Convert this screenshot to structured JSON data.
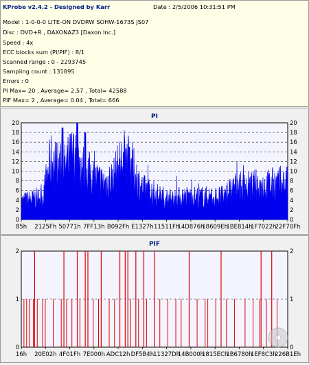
{
  "info": {
    "title": "KProbe v2.4.2 - Designed by Karr",
    "date": "Date : 2/5/2006 10:31:51 PM",
    "lines": [
      "Model : 1-0-0-0 LITE-ON DVDRW SOHW-1673S JS07",
      "Disc : DVD+R , DAXONAZ3 [Daxon Inc.]",
      "Speed : 4x",
      "ECC blocks sum (PI/PIF) : 8/1",
      "Scanned range : 0 - 2293745",
      "Sampling count : 131895",
      "Errors : 0",
      "PI Max= 20 , Average= 2.57 , Total= 42588",
      "PIF Max= 2 , Average= 0.04 , Total= 666"
    ]
  },
  "colors": {
    "pi": "#0000ee",
    "pif": "#dd0000",
    "plot_bg": "#f4f4ff",
    "title": "#00208a"
  },
  "chart_data": [
    {
      "type": "area",
      "title": "PI",
      "ylim": [
        0,
        20
      ],
      "yticks": [
        0,
        2,
        4,
        6,
        8,
        10,
        12,
        14,
        16,
        18,
        20
      ],
      "xticks": [
        "85h",
        "2125Fh",
        "50771h",
        "7FF13h",
        "B092Fh",
        "E1327h",
        "11511Fh",
        "14D876h",
        "18609Eh",
        "1BE814h",
        "1F7022h",
        "22F70Fh"
      ],
      "x_range": [
        0,
        2293745
      ],
      "profile": [
        [
          0.0,
          4
        ],
        [
          0.04,
          4.5
        ],
        [
          0.08,
          5
        ],
        [
          0.11,
          13
        ],
        [
          0.13,
          12
        ],
        [
          0.16,
          11
        ],
        [
          0.19,
          14
        ],
        [
          0.21,
          13
        ],
        [
          0.24,
          11
        ],
        [
          0.28,
          9
        ],
        [
          0.31,
          8
        ],
        [
          0.34,
          9
        ],
        [
          0.37,
          12
        ],
        [
          0.39,
          14
        ],
        [
          0.42,
          11
        ],
        [
          0.45,
          7
        ],
        [
          0.49,
          6
        ],
        [
          0.53,
          5
        ],
        [
          0.57,
          4.5
        ],
        [
          0.6,
          5
        ],
        [
          0.64,
          5
        ],
        [
          0.68,
          5
        ],
        [
          0.72,
          5
        ],
        [
          0.76,
          5
        ],
        [
          0.8,
          7
        ],
        [
          0.84,
          7
        ],
        [
          0.88,
          7.5
        ],
        [
          0.92,
          7.5
        ],
        [
          0.96,
          8
        ],
        [
          1.0,
          8
        ]
      ],
      "peaks": [
        [
          0.155,
          19
        ],
        [
          0.21,
          20
        ],
        [
          0.24,
          18
        ],
        [
          0.405,
          15
        ]
      ]
    },
    {
      "type": "bar",
      "title": "PIF",
      "ylim": [
        0,
        2
      ],
      "yticks": [
        0,
        1,
        2
      ],
      "xticks": [
        "16h",
        "20E02h",
        "4F01Fh",
        "7E000h",
        "ADC12h",
        "DF5B4h",
        "11327Dh",
        "14B000h",
        "1815ECh",
        "1B6780h",
        "1EF8C3h",
        "226B1Eh"
      ],
      "x_range": [
        0,
        2293745
      ],
      "spikes_2": [
        0.05,
        0.16,
        0.21,
        0.24,
        0.25,
        0.3,
        0.37,
        0.39,
        0.4,
        0.43,
        0.46,
        0.5,
        0.63,
        0.75,
        0.9,
        0.94
      ],
      "spikes_1": [
        0.01,
        0.02,
        0.03,
        0.045,
        0.06,
        0.08,
        0.09,
        0.12,
        0.15,
        0.17,
        0.19,
        0.22,
        0.27,
        0.29,
        0.33,
        0.35,
        0.41,
        0.44,
        0.47,
        0.52,
        0.55,
        0.58,
        0.6,
        0.66,
        0.69,
        0.7,
        0.73,
        0.77,
        0.8,
        0.84,
        0.87,
        0.895,
        0.92,
        0.96
      ]
    }
  ]
}
